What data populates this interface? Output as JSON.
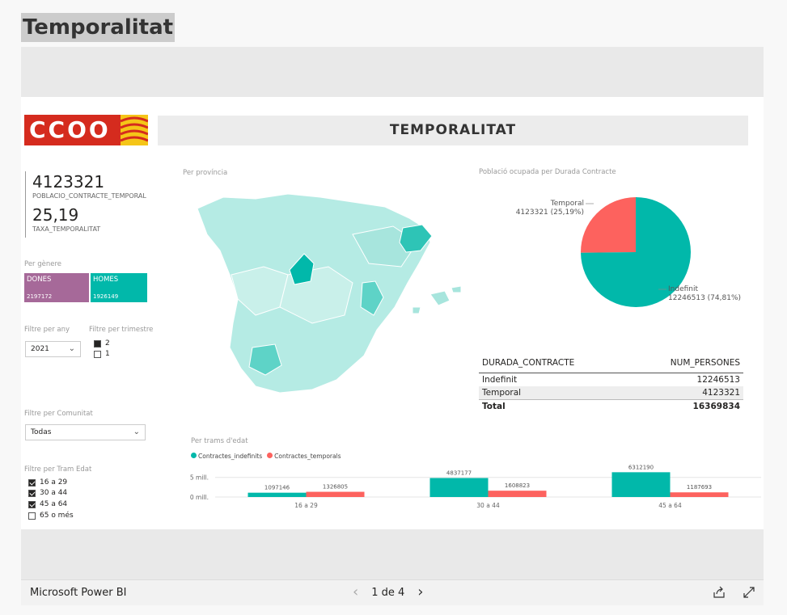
{
  "page": {
    "title": "Temporalitat"
  },
  "logo": {
    "text": "CCOO"
  },
  "banner": {
    "title": "TEMPORALITAT"
  },
  "kpis": [
    {
      "value": "4123321",
      "label": "POBLACIO_CONTRACTE_TEMPORAL"
    },
    {
      "value": "25,19",
      "label": "TAXA_TEMPORALITAT"
    }
  ],
  "gender": {
    "title": "Per gènere",
    "items": [
      {
        "label": "DONES",
        "value": "2197172",
        "color": "#a66999"
      },
      {
        "label": "HOMES",
        "value": "1926149",
        "color": "#01b8aa"
      }
    ]
  },
  "filters": {
    "year": {
      "title": "Filtre per any",
      "selected": "2021"
    },
    "quarter": {
      "title": "Filtre per trimestre",
      "options": [
        {
          "label": "2",
          "checked": true
        },
        {
          "label": "1",
          "checked": false
        }
      ]
    },
    "community": {
      "title": "Filtre per Comunitat",
      "selected": "Todas"
    },
    "age": {
      "title": "Filtre per Tram Edat",
      "options": [
        {
          "label": "16 a 29",
          "checked": true
        },
        {
          "label": "30 a 44",
          "checked": true
        },
        {
          "label": "45 a 64",
          "checked": true
        },
        {
          "label": "65 o més",
          "checked": false
        }
      ]
    }
  },
  "map": {
    "title": "Per província"
  },
  "pie": {
    "title": "Població ocupada per Durada Contracte",
    "slices": [
      {
        "name": "Temporal",
        "value": 4123321,
        "label": "4123321 (25,19%)",
        "color": "#fd625e"
      },
      {
        "name": "Indefinit",
        "value": 12246513,
        "label": "12246513 (74,81%)",
        "color": "#01b8aa"
      }
    ]
  },
  "table": {
    "headers": [
      "DURADA_CONTRACTE",
      "NUM_PERSONES"
    ],
    "rows": [
      [
        "Indefinit",
        "12246513"
      ],
      [
        "Temporal",
        "4123321"
      ]
    ],
    "total": [
      "Total",
      "16369834"
    ]
  },
  "chart_data": {
    "type": "bar",
    "title": "Per trams d'edat",
    "categories": [
      "16 a 29",
      "30 a 44",
      "45 a 64"
    ],
    "series": [
      {
        "name": "Contractes_indefinits",
        "values": [
          1097146,
          4837177,
          6312190
        ],
        "color": "#01b8aa"
      },
      {
        "name": "Contractes_temporals",
        "values": [
          1326805,
          1608823,
          1187693
        ],
        "color": "#fd625e"
      }
    ],
    "yticks": [
      "0 mill.",
      "5 mill."
    ],
    "ylim": [
      0,
      7000000
    ]
  },
  "footer": {
    "brand": "Microsoft Power BI",
    "page": "1 de 4"
  }
}
